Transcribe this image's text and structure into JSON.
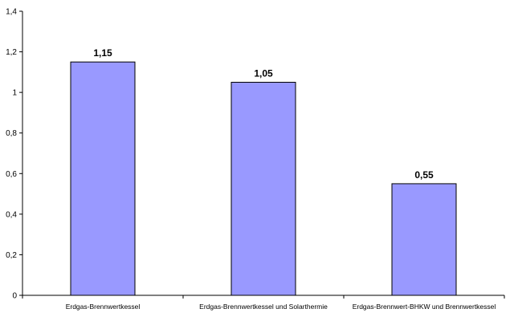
{
  "chart_data": {
    "type": "bar",
    "title": "",
    "xlabel": "",
    "ylabel": "",
    "categories": [
      "Erdgas-Brennwertkessel",
      "Erdgas-Brennwertkessel und Solarthermie",
      "Erdgas-Brennwert-BHKW und Brennwertkessel"
    ],
    "values": [
      1.15,
      1.05,
      0.55
    ],
    "data_labels": [
      "1,15",
      "1,05",
      "0,55"
    ],
    "ylim": [
      0,
      1.4
    ],
    "y_ticks": [
      0,
      0.2,
      0.4,
      0.6,
      0.8,
      1,
      1.2,
      1.4
    ],
    "y_tick_labels": [
      "0",
      "0,2",
      "0,4",
      "0,6",
      "0,8",
      "1",
      "1,2",
      "1,4"
    ],
    "grid": false,
    "legend": "none",
    "colors": {
      "bar_fill": "#9999ff",
      "bar_stroke": "#000000",
      "axis": "#000000"
    }
  }
}
